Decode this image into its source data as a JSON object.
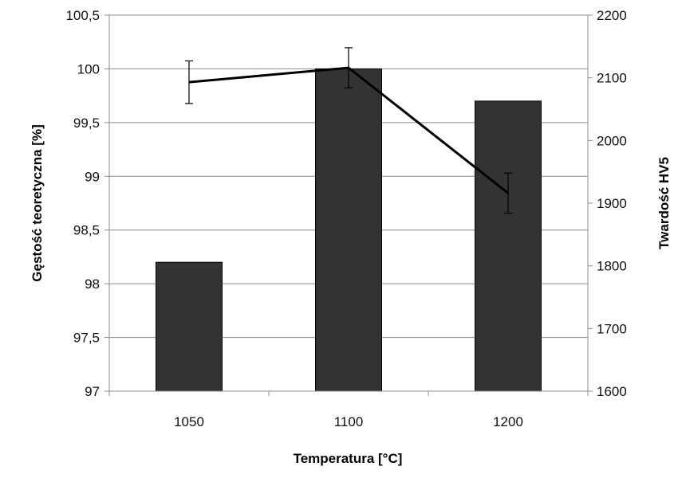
{
  "chart_data": {
    "type": "bar",
    "categories": [
      "1050",
      "1100",
      "1200"
    ],
    "xlabel": "Temperatura [°C]",
    "ylabel": "Gęstość teoretyczna [%]",
    "y2label": "Twardość HV5",
    "ylim": [
      97,
      100.5
    ],
    "y2lim": [
      1600,
      2200
    ],
    "yticks": [
      "97",
      "97,5",
      "98",
      "98,5",
      "99",
      "99,5",
      "100",
      "100,5"
    ],
    "y2ticks": [
      "1600",
      "1700",
      "1800",
      "1900",
      "2000",
      "2100",
      "2200"
    ],
    "grid": true,
    "series": [
      {
        "type": "bar",
        "axis": "left",
        "values": [
          98.2,
          100.0,
          99.7
        ],
        "color": "#333333"
      },
      {
        "type": "line",
        "axis": "right",
        "values": [
          2093,
          2116,
          1916
        ],
        "error": [
          34,
          32,
          32
        ],
        "color": "#000000"
      }
    ]
  }
}
